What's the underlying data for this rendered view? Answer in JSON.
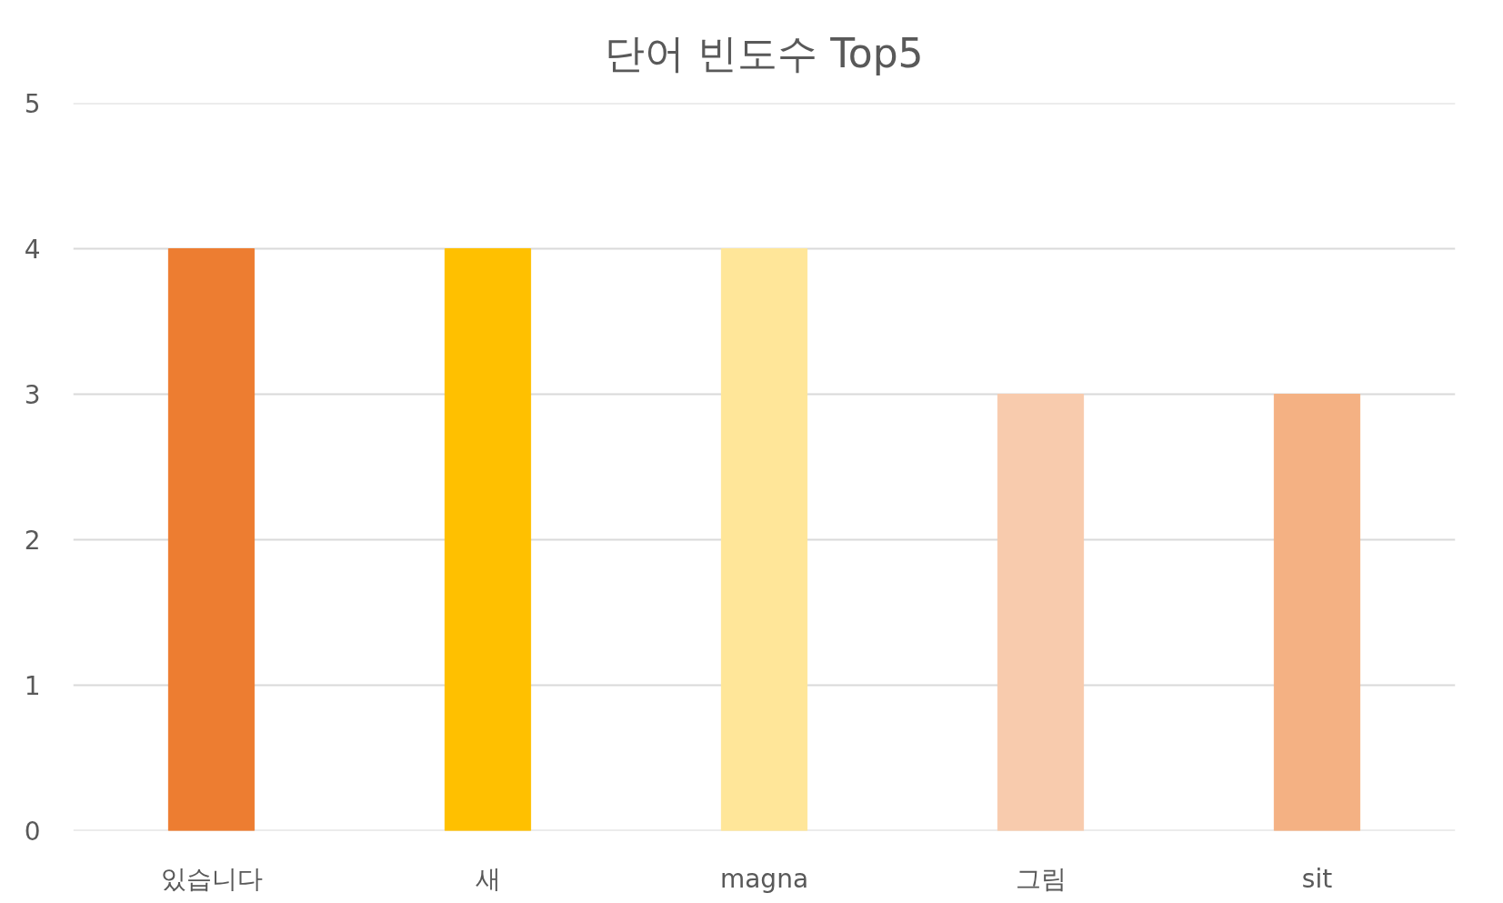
{
  "chart_data": {
    "type": "bar",
    "title": "단어 빈도수 Top5",
    "categories": [
      "있습니다",
      "새",
      "magna",
      "그림",
      "sit"
    ],
    "values": [
      4,
      4,
      4,
      3,
      3
    ],
    "colors": [
      "#ed7d31",
      "#ffc000",
      "#ffe699",
      "#f8cbad",
      "#f4b183"
    ],
    "ylim": [
      0,
      5
    ],
    "yticks": [
      0,
      1,
      2,
      3,
      4,
      5
    ],
    "grid": "y"
  }
}
